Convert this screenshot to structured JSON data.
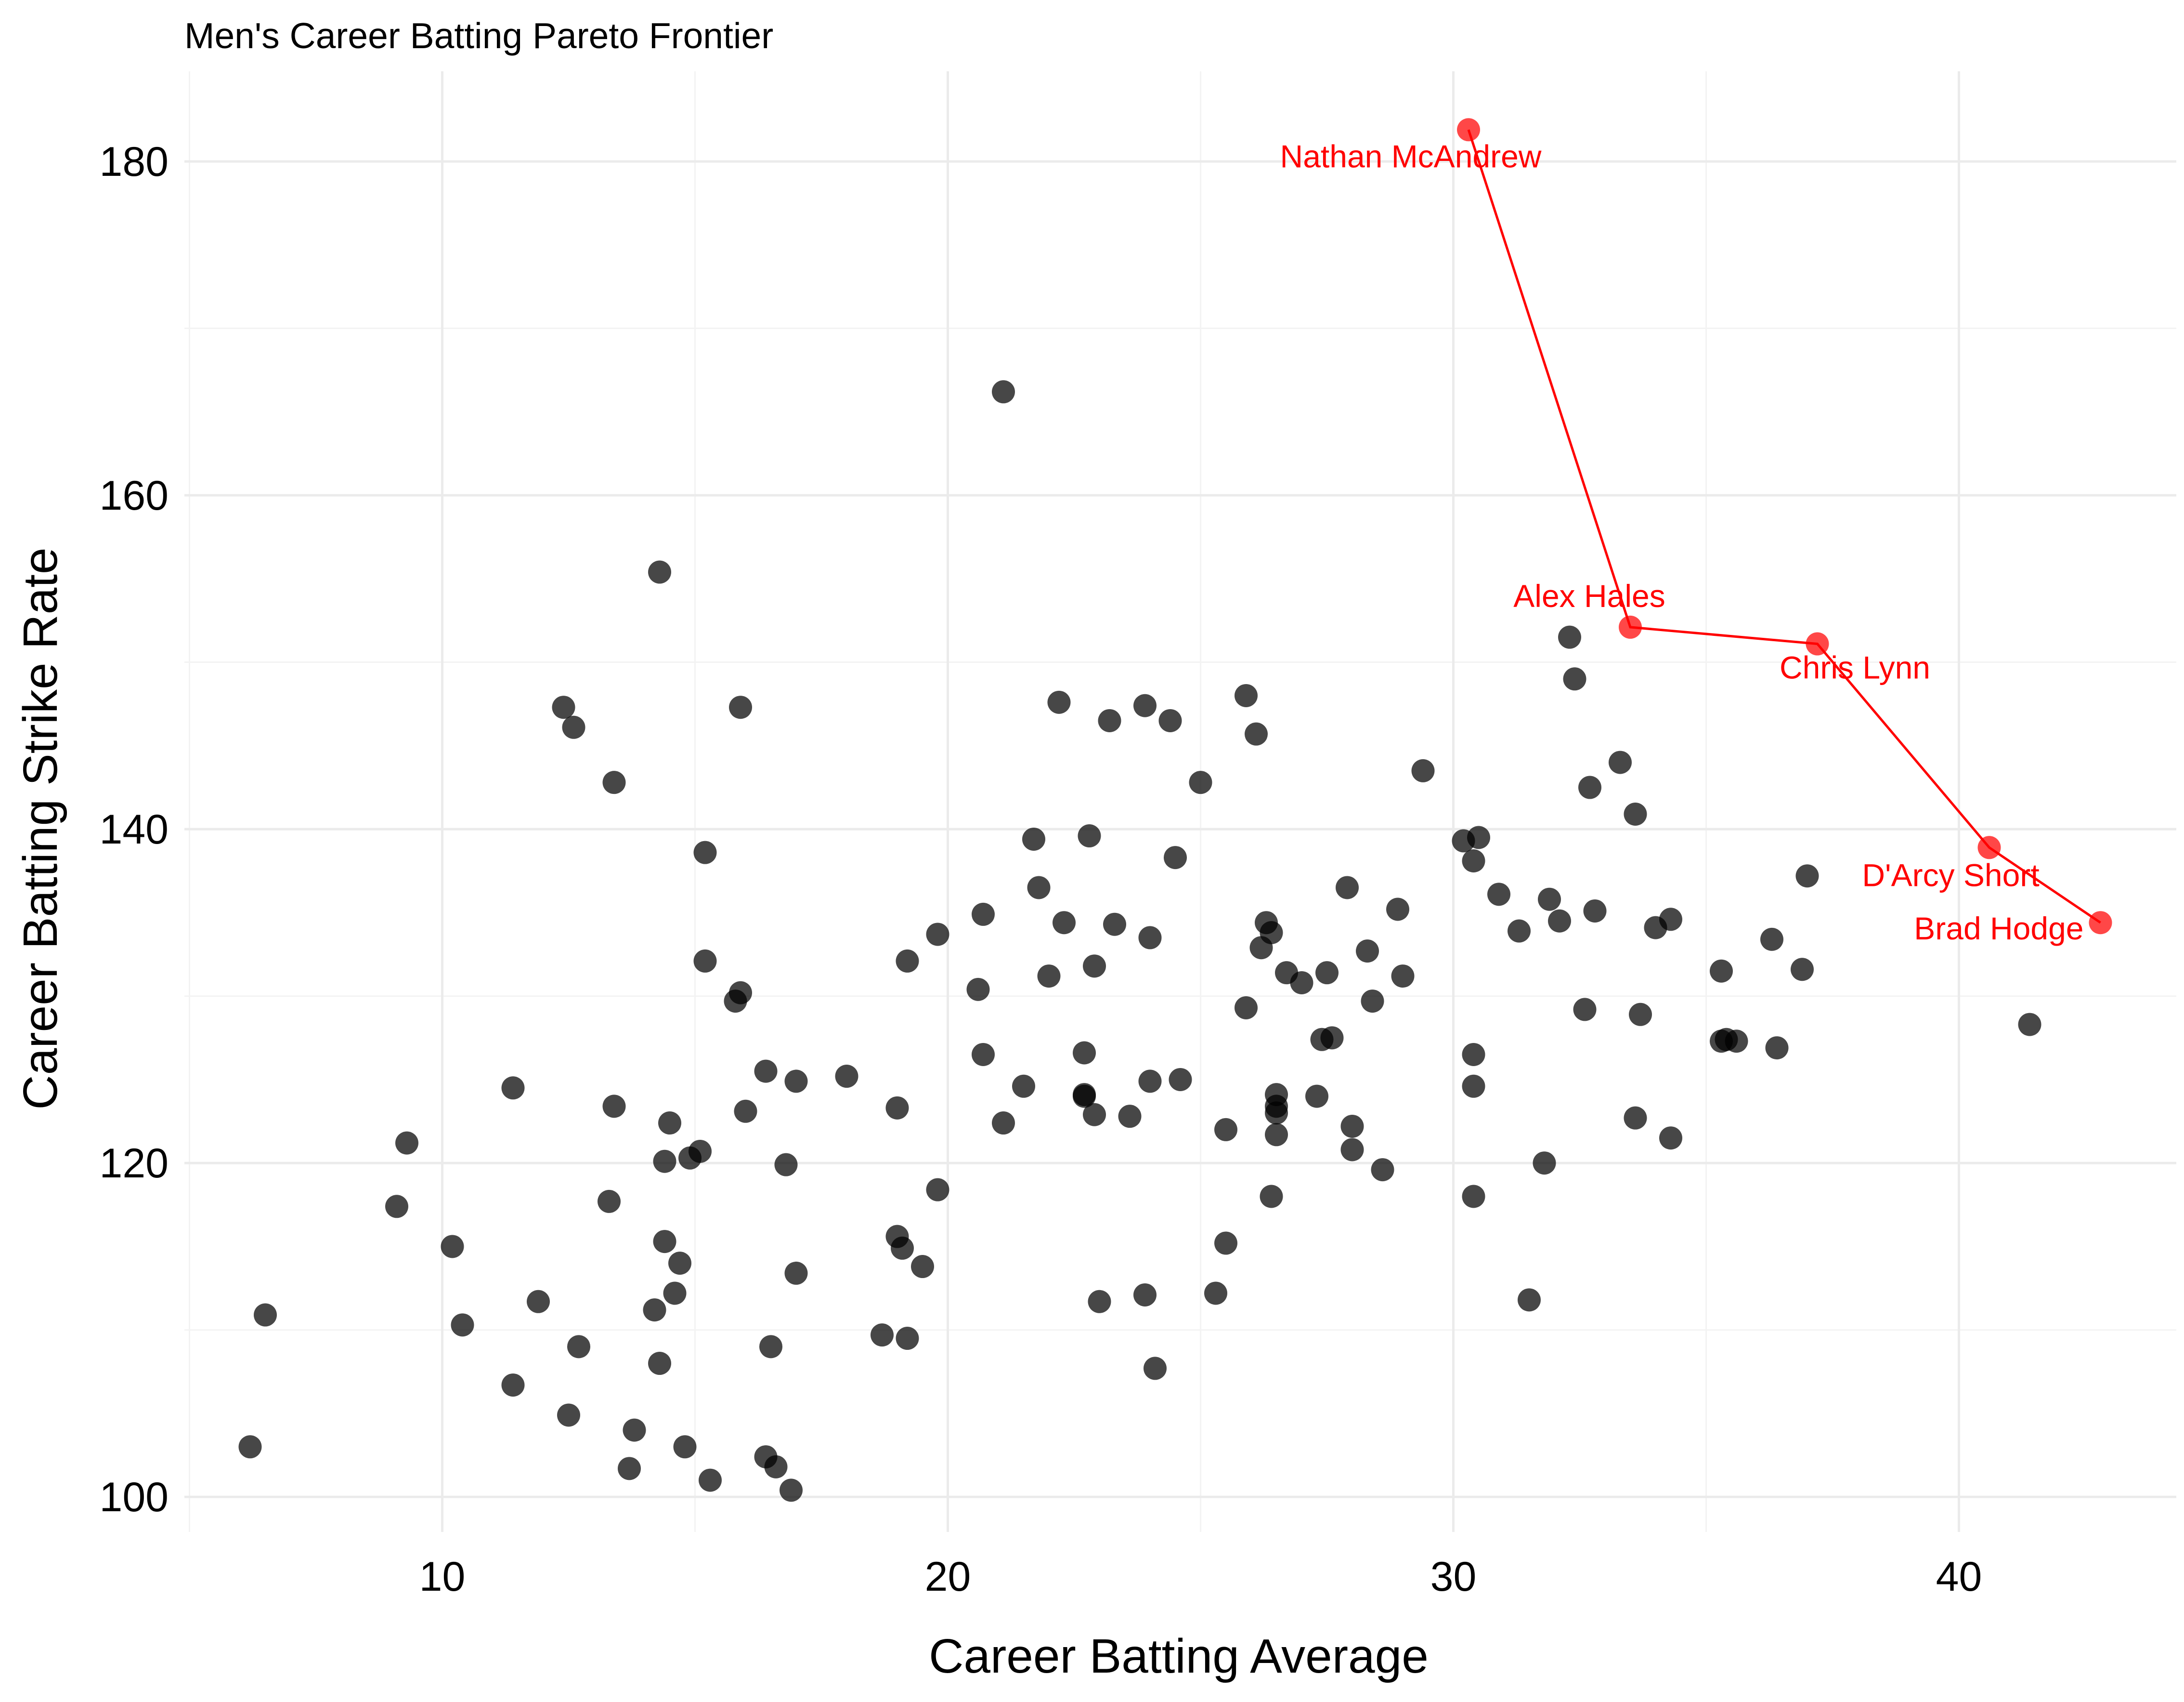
{
  "chart_data": {
    "type": "scatter",
    "title": "Men's Career Batting Pareto Frontier",
    "xlabel": "Career Batting Average",
    "ylabel": "Career Batting Strike Rate",
    "xlim": [
      4.9,
      44.3
    ],
    "ylim": [
      97.9,
      185.4
    ],
    "xticks": [
      10,
      20,
      30,
      40
    ],
    "yticks": [
      100,
      120,
      140,
      160,
      180
    ],
    "xminor": [
      5,
      15,
      25,
      35
    ],
    "yminor": [
      110,
      130,
      150,
      170
    ],
    "grid": true,
    "colors": {
      "points": "#000000",
      "pareto": "#ff0000",
      "grid": "#ebebeb"
    },
    "series": [
      {
        "points": [
          [
            6.2,
            103.0
          ],
          [
            6.5,
            110.9
          ],
          [
            9.1,
            117.4
          ],
          [
            9.3,
            121.2
          ],
          [
            10.2,
            115.0
          ],
          [
            10.4,
            110.3
          ],
          [
            11.4,
            106.7
          ],
          [
            11.4,
            124.5
          ],
          [
            11.9,
            111.7
          ],
          [
            12.4,
            147.3
          ],
          [
            12.6,
            146.1
          ],
          [
            12.5,
            104.9
          ],
          [
            12.7,
            109.0
          ],
          [
            13.3,
            117.7
          ],
          [
            13.4,
            142.8
          ],
          [
            13.4,
            123.4
          ],
          [
            13.7,
            101.7
          ],
          [
            13.8,
            104.0
          ],
          [
            14.2,
            111.2
          ],
          [
            14.3,
            155.4
          ],
          [
            14.3,
            108.0
          ],
          [
            14.4,
            115.3
          ],
          [
            14.4,
            120.1
          ],
          [
            14.5,
            122.4
          ],
          [
            14.6,
            112.2
          ],
          [
            14.7,
            114.0
          ],
          [
            14.8,
            103.0
          ],
          [
            14.9,
            120.3
          ],
          [
            15.1,
            120.7
          ],
          [
            15.2,
            138.6
          ],
          [
            15.2,
            132.1
          ],
          [
            15.3,
            101.0
          ],
          [
            15.8,
            129.7
          ],
          [
            15.9,
            147.3
          ],
          [
            15.9,
            130.2
          ],
          [
            16.0,
            123.1
          ],
          [
            16.4,
            102.4
          ],
          [
            16.4,
            125.5
          ],
          [
            16.5,
            109.0
          ],
          [
            16.6,
            101.8
          ],
          [
            16.8,
            119.9
          ],
          [
            16.9,
            100.4
          ],
          [
            17.0,
            124.9
          ],
          [
            17.0,
            113.4
          ],
          [
            18.0,
            125.2
          ],
          [
            18.7,
            109.7
          ],
          [
            19.0,
            123.3
          ],
          [
            19.0,
            115.6
          ],
          [
            19.1,
            114.9
          ],
          [
            19.2,
            132.1
          ],
          [
            19.2,
            109.5
          ],
          [
            19.5,
            113.8
          ],
          [
            19.8,
            133.7
          ],
          [
            19.8,
            118.4
          ],
          [
            20.6,
            130.4
          ],
          [
            20.7,
            134.9
          ],
          [
            20.7,
            126.5
          ],
          [
            21.1,
            122.4
          ],
          [
            21.1,
            166.2
          ],
          [
            21.5,
            124.6
          ],
          [
            21.7,
            139.4
          ],
          [
            21.8,
            136.5
          ],
          [
            22.0,
            131.2
          ],
          [
            22.2,
            147.6
          ],
          [
            22.3,
            134.4
          ],
          [
            22.7,
            126.6
          ],
          [
            22.7,
            124.1
          ],
          [
            22.7,
            124.0
          ],
          [
            22.8,
            139.6
          ],
          [
            22.9,
            131.8
          ],
          [
            22.9,
            122.9
          ],
          [
            23.0,
            111.7
          ],
          [
            23.2,
            146.5
          ],
          [
            23.3,
            134.3
          ],
          [
            23.6,
            122.8
          ],
          [
            23.9,
            147.4
          ],
          [
            23.9,
            112.1
          ],
          [
            24.0,
            133.5
          ],
          [
            24.0,
            124.9
          ],
          [
            24.1,
            107.7
          ],
          [
            24.4,
            146.5
          ],
          [
            24.5,
            138.3
          ],
          [
            24.6,
            125.0
          ],
          [
            25.0,
            142.8
          ],
          [
            25.3,
            112.2
          ],
          [
            25.5,
            122.0
          ],
          [
            25.5,
            115.2
          ],
          [
            25.9,
            148.0
          ],
          [
            25.9,
            129.3
          ],
          [
            26.1,
            145.7
          ],
          [
            26.2,
            132.9
          ],
          [
            26.3,
            134.4
          ],
          [
            26.4,
            133.8
          ],
          [
            26.4,
            118.0
          ],
          [
            26.5,
            124.1
          ],
          [
            26.5,
            123.0
          ],
          [
            26.5,
            123.4
          ],
          [
            26.5,
            121.7
          ],
          [
            26.7,
            131.4
          ],
          [
            27.0,
            130.8
          ],
          [
            27.3,
            124.0
          ],
          [
            27.4,
            127.4
          ],
          [
            27.5,
            131.4
          ],
          [
            27.6,
            127.5
          ],
          [
            27.9,
            136.5
          ],
          [
            28.0,
            122.2
          ],
          [
            28.0,
            120.8
          ],
          [
            28.3,
            132.7
          ],
          [
            28.4,
            129.7
          ],
          [
            28.6,
            119.6
          ],
          [
            28.9,
            135.2
          ],
          [
            29.0,
            131.2
          ],
          [
            29.4,
            143.5
          ],
          [
            30.2,
            139.3
          ],
          [
            30.4,
            138.1
          ],
          [
            30.4,
            126.5
          ],
          [
            30.4,
            124.6
          ],
          [
            30.4,
            118.0
          ],
          [
            30.5,
            139.5
          ],
          [
            30.9,
            136.1
          ],
          [
            31.3,
            133.9
          ],
          [
            31.5,
            111.8
          ],
          [
            31.8,
            120.0
          ],
          [
            31.9,
            135.8
          ],
          [
            32.1,
            134.5
          ],
          [
            32.3,
            151.5
          ],
          [
            32.4,
            149.0
          ],
          [
            32.6,
            129.2
          ],
          [
            32.7,
            142.5
          ],
          [
            32.8,
            135.1
          ],
          [
            33.3,
            144.0
          ],
          [
            33.6,
            140.9
          ],
          [
            33.6,
            122.7
          ],
          [
            33.7,
            128.9
          ],
          [
            34.0,
            134.1
          ],
          [
            34.3,
            121.5
          ],
          [
            34.3,
            134.6
          ],
          [
            35.3,
            131.5
          ],
          [
            35.3,
            127.3
          ],
          [
            35.4,
            127.4
          ],
          [
            35.6,
            127.3
          ],
          [
            36.3,
            133.4
          ],
          [
            36.4,
            126.9
          ],
          [
            36.9,
            131.6
          ],
          [
            37.0,
            137.2
          ],
          [
            41.4,
            128.3
          ]
        ]
      },
      {
        "pareto": true,
        "points": [
          [
            30.3,
            181.9
          ],
          [
            33.5,
            152.1
          ],
          [
            37.2,
            151.1
          ],
          [
            40.6,
            138.9
          ],
          [
            42.8,
            134.4
          ]
        ],
        "labels": [
          "Nathan McAndrew",
          "Alex Hales",
          "Chris Lynn",
          "D'Arcy Short",
          "Brad Hodge"
        ]
      }
    ]
  }
}
